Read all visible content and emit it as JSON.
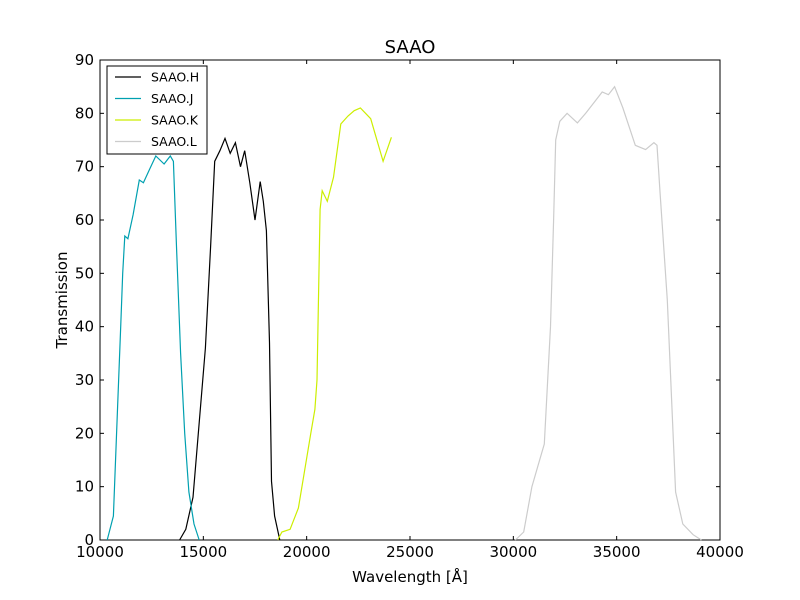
{
  "chart_data": {
    "type": "line",
    "title": "SAAO",
    "xlabel": "Wavelength [Å]",
    "ylabel": "Transmission",
    "xlim": [
      10000,
      40000
    ],
    "ylim": [
      0,
      90
    ],
    "xticks": [
      10000,
      15000,
      20000,
      25000,
      30000,
      35000,
      40000
    ],
    "yticks": [
      0,
      10,
      20,
      30,
      40,
      50,
      60,
      70,
      80,
      90
    ],
    "grid": false,
    "legend_position": "top-left",
    "series": [
      {
        "name": "SAAO.H",
        "color": "#000000",
        "points": [
          [
            13850,
            0
          ],
          [
            14150,
            2
          ],
          [
            14500,
            8
          ],
          [
            14800,
            22
          ],
          [
            15100,
            36
          ],
          [
            15350,
            55
          ],
          [
            15550,
            71
          ],
          [
            15800,
            73
          ],
          [
            16050,
            75.3
          ],
          [
            16300,
            72.5
          ],
          [
            16550,
            74.5
          ],
          [
            16800,
            70
          ],
          [
            17000,
            73
          ],
          [
            17250,
            67
          ],
          [
            17500,
            60
          ],
          [
            17750,
            67.2
          ],
          [
            17900,
            63.5
          ],
          [
            18050,
            58
          ],
          [
            18200,
            37
          ],
          [
            18300,
            11
          ],
          [
            18450,
            4.5
          ],
          [
            18700,
            0
          ]
        ]
      },
      {
        "name": "SAAO.J",
        "color": "#00a0b0",
        "points": [
          [
            10350,
            0
          ],
          [
            10650,
            4.5
          ],
          [
            10850,
            25
          ],
          [
            11000,
            40
          ],
          [
            11100,
            50
          ],
          [
            11200,
            57
          ],
          [
            11350,
            56.5
          ],
          [
            11600,
            61
          ],
          [
            11900,
            67.5
          ],
          [
            12100,
            67
          ],
          [
            12400,
            69.5
          ],
          [
            12700,
            72
          ],
          [
            13100,
            70.5
          ],
          [
            13400,
            72
          ],
          [
            13550,
            71
          ],
          [
            13700,
            55
          ],
          [
            13900,
            35
          ],
          [
            14100,
            20
          ],
          [
            14300,
            9
          ],
          [
            14550,
            3
          ],
          [
            14800,
            0
          ]
        ]
      },
      {
        "name": "SAAO.K",
        "color": "#ccee00",
        "points": [
          [
            18600,
            0
          ],
          [
            18800,
            1.5
          ],
          [
            19200,
            2
          ],
          [
            19600,
            6
          ],
          [
            19900,
            13
          ],
          [
            20200,
            20
          ],
          [
            20400,
            24.5
          ],
          [
            20500,
            30
          ],
          [
            20650,
            62
          ],
          [
            20750,
            65.5
          ],
          [
            21000,
            63.5
          ],
          [
            21300,
            68
          ],
          [
            21650,
            78
          ],
          [
            22000,
            79.5
          ],
          [
            22300,
            80.5
          ],
          [
            22600,
            81
          ],
          [
            23100,
            79
          ],
          [
            23700,
            71
          ],
          [
            24100,
            75.5
          ]
        ]
      },
      {
        "name": "SAAO.L",
        "color": "#cccccc",
        "points": [
          [
            30100,
            0
          ],
          [
            30500,
            1.5
          ],
          [
            30900,
            10
          ],
          [
            31200,
            14
          ],
          [
            31500,
            18
          ],
          [
            31800,
            40
          ],
          [
            31950,
            60
          ],
          [
            32050,
            75
          ],
          [
            32250,
            78.5
          ],
          [
            32600,
            80
          ],
          [
            33100,
            78.2
          ],
          [
            33500,
            80
          ],
          [
            34000,
            82.5
          ],
          [
            34300,
            84
          ],
          [
            34600,
            83.5
          ],
          [
            34900,
            85
          ],
          [
            35300,
            81
          ],
          [
            35900,
            74
          ],
          [
            36400,
            73.2
          ],
          [
            36800,
            74.5
          ],
          [
            36950,
            74
          ],
          [
            37100,
            65
          ],
          [
            37450,
            45
          ],
          [
            37850,
            9
          ],
          [
            38200,
            3
          ],
          [
            38700,
            1
          ],
          [
            39100,
            0
          ]
        ]
      }
    ]
  }
}
